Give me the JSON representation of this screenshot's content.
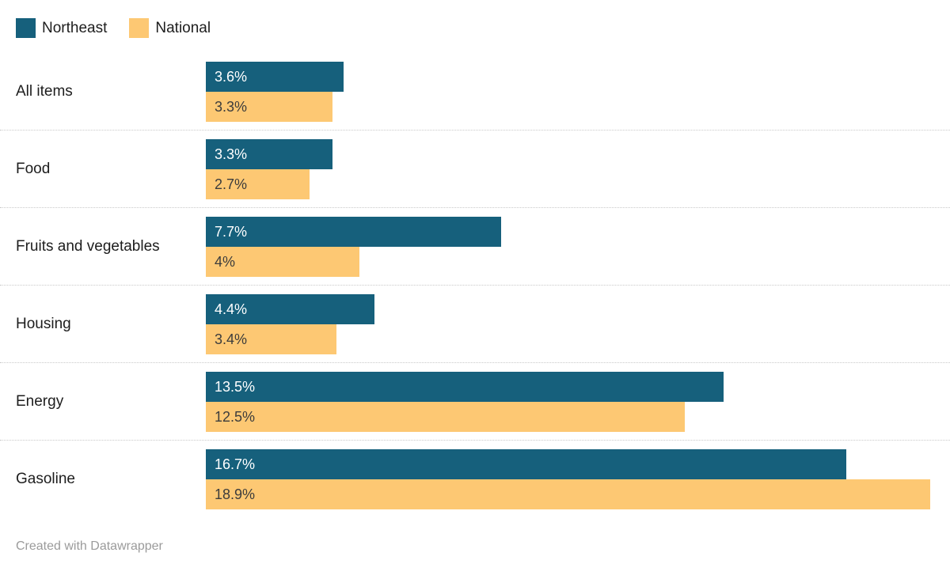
{
  "chart_data": {
    "type": "bar",
    "orientation": "horizontal",
    "title": "",
    "categories": [
      "All items",
      "Food",
      "Fruits and vegetables",
      "Housing",
      "Energy",
      "Gasoline"
    ],
    "series": [
      {
        "name": "Northeast",
        "color": "#16607C",
        "values": [
          3.6,
          3.3,
          7.7,
          4.4,
          13.5,
          16.7
        ],
        "labels": [
          "3.6%",
          "3.3%",
          "7.7%",
          "4.4%",
          "13.5%",
          "16.7%"
        ]
      },
      {
        "name": "National",
        "color": "#FDC873",
        "values": [
          3.3,
          2.7,
          4,
          3.4,
          12.5,
          18.9
        ],
        "labels": [
          "3.3%",
          "2.7%",
          "4%",
          "3.4%",
          "12.5%",
          "18.9%"
        ]
      }
    ],
    "axis_max": 19,
    "grid": "dotted-row-separators",
    "legend_position": "top-left",
    "value_labels": "inside-bar-left",
    "footer": "Created with Datawrapper"
  }
}
